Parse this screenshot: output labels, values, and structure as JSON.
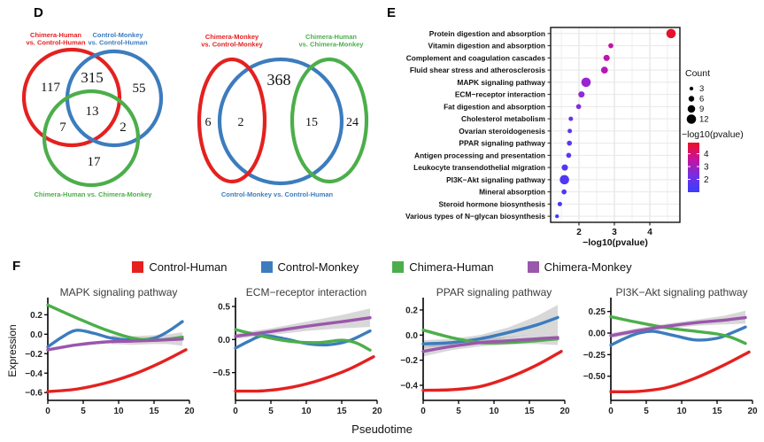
{
  "panel_labels": {
    "d": "D",
    "e": "E",
    "f": "F"
  },
  "colors": {
    "red": "#e4211f",
    "blue": "#3c7cbe",
    "green": "#4cae4b",
    "purple": "#9a57ab",
    "gridline": "#e3e3e3",
    "band_gray": "#999999",
    "dot_gradient_top": "#ee1023",
    "dot_gradient_mid": "#c215a2",
    "dot_gradient_bottom": "#3a3dfa"
  },
  "panel_f": {
    "xlabel": "Pseudotime",
    "legend": [
      {
        "label": "Control-Human",
        "color": "red"
      },
      {
        "label": "Control-Monkey",
        "color": "blue"
      },
      {
        "label": "Chimera-Human",
        "color": "green"
      },
      {
        "label": "Chimera-Monkey",
        "color": "purple"
      }
    ]
  },
  "chart_data": [
    {
      "type": "venn",
      "name": "venn-human-comparisons",
      "sets": [
        {
          "label_lines": [
            "Chimera-Human",
            "vs. Control-Human"
          ],
          "color": "red"
        },
        {
          "label_lines": [
            "Control-Monkey",
            "vs. Control-Human"
          ],
          "color": "blue"
        },
        {
          "label_lines": [
            "Chimera-Human vs. Chimera-Monkey"
          ],
          "color": "green"
        }
      ],
      "values": {
        "A": 117,
        "AB": 315,
        "B": 55,
        "ABC": 13,
        "AC": 7,
        "BC": 2,
        "C": 17
      }
    },
    {
      "type": "venn",
      "name": "venn-monkey-comparisons",
      "sets": [
        {
          "label_lines": [
            "Chimera-Monkey",
            "vs. Control-Monkey"
          ],
          "color": "red"
        },
        {
          "label_lines": [
            "Control-Monkey vs. Control-Human"
          ],
          "color": "blue"
        },
        {
          "label_lines": [
            "Chimera-Human",
            "vs. Chimera-Monkey"
          ],
          "color": "green"
        }
      ],
      "values": {
        "A": 6,
        "AB": 2,
        "B": 368,
        "BC": 15,
        "C": 24
      }
    },
    {
      "type": "scatter",
      "name": "kegg-enrichment-dotplot",
      "xlabel": "−log10(pvalue)",
      "xlim": [
        1.2,
        4.85
      ],
      "xticks": [
        2,
        3,
        4
      ],
      "legend": {
        "count_title": "Count",
        "count_sizes": [
          3,
          6,
          9,
          12
        ],
        "color_title": "−log10(pvalue)",
        "color_ticks": [
          4,
          3,
          2
        ]
      },
      "points": [
        {
          "pathway": "Protein digestion and absorption",
          "neglog10p": 4.6,
          "count": 12,
          "color": "#e8112b"
        },
        {
          "pathway": "Vitamin digestion and absorption",
          "neglog10p": 2.9,
          "count": 5,
          "color": "#c214a4"
        },
        {
          "pathway": "Complement and coagulation cascades",
          "neglog10p": 2.78,
          "count": 7,
          "color": "#bd17ab"
        },
        {
          "pathway": "Fluid shear stress and atherosclerosis",
          "neglog10p": 2.72,
          "count": 8,
          "color": "#b519b5"
        },
        {
          "pathway": "MAPK signaling pathway",
          "neglog10p": 2.2,
          "count": 12,
          "color": "#9a24cf"
        },
        {
          "pathway": "ECM−receptor interaction",
          "neglog10p": 2.07,
          "count": 7,
          "color": "#9129d8"
        },
        {
          "pathway": "Fat digestion and absorption",
          "neglog10p": 1.99,
          "count": 5,
          "color": "#812ee2"
        },
        {
          "pathway": "Cholesterol metabolism",
          "neglog10p": 1.77,
          "count": 4,
          "color": "#6333ee"
        },
        {
          "pathway": "Ovarian steroidogenesis",
          "neglog10p": 1.74,
          "count": 4,
          "color": "#5f34f0"
        },
        {
          "pathway": "PPAR signaling pathway",
          "neglog10p": 1.73,
          "count": 5,
          "color": "#5e35f0"
        },
        {
          "pathway": "Antigen processing and presentation",
          "neglog10p": 1.71,
          "count": 5,
          "color": "#5c35f1"
        },
        {
          "pathway": "Leukocyte transendothelial migration",
          "neglog10p": 1.6,
          "count": 7,
          "color": "#5037f4"
        },
        {
          "pathway": "PI3K−Akt signaling pathway",
          "neglog10p": 1.59,
          "count": 12,
          "color": "#4f37f4"
        },
        {
          "pathway": "Mineral absorption",
          "neglog10p": 1.58,
          "count": 5,
          "color": "#4e38f4"
        },
        {
          "pathway": "Steroid hormone biosynthesis",
          "neglog10p": 1.46,
          "count": 4,
          "color": "#4339f7"
        },
        {
          "pathway": "Various types of N−glycan biosynthesis",
          "neglog10p": 1.38,
          "count": 3,
          "color": "#3f3af8"
        }
      ]
    },
    {
      "type": "line",
      "title": "MAPK signaling pathway",
      "ylabel": "Expression",
      "xlim": [
        0,
        20
      ],
      "xticks": [
        0,
        5,
        10,
        15,
        20
      ],
      "ylim": [
        -0.68,
        0.34
      ],
      "yticks": [
        0.2,
        0,
        -0.2,
        -0.4,
        -0.6
      ],
      "ytick_decimals": 1,
      "series": [
        {
          "name": "Control-Human",
          "color": "red",
          "x": [
            0,
            4,
            8,
            12,
            16,
            19.5
          ],
          "y": [
            -0.59,
            -0.565,
            -0.505,
            -0.415,
            -0.29,
            -0.16
          ]
        },
        {
          "name": "Control-Monkey",
          "color": "blue",
          "x": [
            0,
            2,
            4,
            6.5,
            9,
            12,
            15,
            17,
            19
          ],
          "y": [
            -0.13,
            -0.03,
            0.04,
            0.01,
            -0.04,
            -0.06,
            -0.04,
            0.03,
            0.13
          ]
        },
        {
          "name": "Chimera-Human",
          "color": "green",
          "x": [
            0,
            4,
            8,
            12,
            15,
            17,
            19
          ],
          "y": [
            0.3,
            0.17,
            0.05,
            -0.04,
            -0.06,
            -0.05,
            -0.03
          ],
          "band": {
            "x": [
              9,
              12,
              15,
              17,
              19
            ],
            "lo": [
              -0.1,
              -0.11,
              -0.1,
              -0.1,
              -0.12
            ],
            "hi": [
              -0.01,
              -0.02,
              -0.01,
              0.0,
              0.02
            ]
          }
        },
        {
          "name": "Chimera-Monkey",
          "color": "purple",
          "x": [
            0,
            4,
            8,
            12,
            16,
            19
          ],
          "y": [
            -0.16,
            -0.11,
            -0.08,
            -0.07,
            -0.06,
            -0.05
          ]
        }
      ]
    },
    {
      "type": "line",
      "title": "ECM−receptor interaction",
      "ylabel": "",
      "xlim": [
        0,
        20
      ],
      "xticks": [
        0,
        5,
        10,
        15,
        20
      ],
      "ylim": [
        -0.92,
        0.58
      ],
      "yticks": [
        0.5,
        0,
        -0.5
      ],
      "ytick_decimals": 1,
      "series": [
        {
          "name": "Control-Human",
          "color": "red",
          "x": [
            0,
            4,
            8,
            12,
            16,
            19.5
          ],
          "y": [
            -0.78,
            -0.775,
            -0.72,
            -0.61,
            -0.45,
            -0.26
          ]
        },
        {
          "name": "Control-Monkey",
          "color": "blue",
          "x": [
            0,
            2,
            4,
            7,
            10,
            13,
            16,
            19
          ],
          "y": [
            -0.13,
            -0.02,
            0.06,
            0.01,
            -0.06,
            -0.08,
            -0.02,
            0.13
          ]
        },
        {
          "name": "Chimera-Human",
          "color": "green",
          "x": [
            0,
            3,
            6,
            9,
            12,
            15,
            17,
            19
          ],
          "y": [
            0.15,
            0.07,
            0.0,
            -0.04,
            -0.045,
            -0.01,
            -0.05,
            -0.16
          ]
        },
        {
          "name": "Chimera-Monkey",
          "color": "purple",
          "x": [
            0,
            5,
            10,
            15,
            19
          ],
          "y": [
            0.05,
            0.12,
            0.2,
            0.27,
            0.33
          ],
          "band": {
            "x": [
              0,
              5,
              10,
              15,
              19
            ],
            "lo": [
              0.01,
              0.07,
              0.13,
              0.17,
              0.19
            ],
            "hi": [
              0.09,
              0.17,
              0.27,
              0.37,
              0.47
            ]
          }
        }
      ]
    },
    {
      "type": "line",
      "title": "PPAR signaling pathway",
      "ylabel": "",
      "xlim": [
        0,
        20
      ],
      "xticks": [
        0,
        5,
        10,
        15,
        20
      ],
      "ylim": [
        -0.52,
        0.27
      ],
      "yticks": [
        0.2,
        0,
        -0.2,
        -0.4
      ],
      "ytick_decimals": 1,
      "series": [
        {
          "name": "Control-Human",
          "color": "red",
          "x": [
            0,
            4,
            8,
            12,
            16,
            19.5
          ],
          "y": [
            -0.44,
            -0.435,
            -0.41,
            -0.34,
            -0.24,
            -0.13
          ]
        },
        {
          "name": "Control-Monkey",
          "color": "blue",
          "x": [
            0,
            4,
            8,
            12,
            16,
            19
          ],
          "y": [
            -0.07,
            -0.06,
            -0.03,
            0.02,
            0.08,
            0.14
          ],
          "band": {
            "x": [
              0,
              4,
              8,
              12,
              16,
              19
            ],
            "lo": [
              -0.1,
              -0.09,
              -0.06,
              -0.02,
              0.01,
              0.04
            ],
            "hi": [
              -0.04,
              -0.03,
              0.0,
              0.06,
              0.15,
              0.24
            ]
          }
        },
        {
          "name": "Chimera-Human",
          "color": "green",
          "x": [
            0,
            4,
            8,
            12,
            16,
            19
          ],
          "y": [
            0.04,
            -0.02,
            -0.06,
            -0.06,
            -0.045,
            -0.03
          ]
        },
        {
          "name": "Chimera-Monkey",
          "color": "purple",
          "x": [
            0,
            4,
            8,
            12,
            16,
            19
          ],
          "y": [
            -0.13,
            -0.09,
            -0.06,
            -0.045,
            -0.03,
            -0.02
          ],
          "band": {
            "x": [
              0,
              4,
              8,
              12,
              16,
              19
            ],
            "lo": [
              -0.17,
              -0.12,
              -0.09,
              -0.075,
              -0.07,
              -0.08
            ],
            "hi": [
              -0.09,
              -0.06,
              -0.03,
              -0.015,
              0.01,
              0.04
            ]
          }
        }
      ]
    },
    {
      "type": "line",
      "title": "PI3K−Akt signaling pathway",
      "ylabel": "",
      "xlim": [
        0,
        20
      ],
      "xticks": [
        0,
        5,
        10,
        15,
        20
      ],
      "ylim": [
        -0.78,
        0.37
      ],
      "yticks": [
        0.25,
        0,
        -0.25,
        -0.5
      ],
      "ytick_decimals": 2,
      "series": [
        {
          "name": "Control-Human",
          "color": "red",
          "x": [
            0,
            4,
            8,
            12,
            16,
            19.5
          ],
          "y": [
            -0.68,
            -0.675,
            -0.63,
            -0.52,
            -0.37,
            -0.22
          ]
        },
        {
          "name": "Control-Monkey",
          "color": "blue",
          "x": [
            0,
            2,
            4,
            6,
            9,
            12,
            15,
            17,
            19
          ],
          "y": [
            -0.14,
            -0.06,
            0.0,
            0.02,
            -0.03,
            -0.08,
            -0.06,
            0.0,
            0.07
          ]
        },
        {
          "name": "Chimera-Human",
          "color": "green",
          "x": [
            0,
            4,
            8,
            12,
            15,
            17,
            19
          ],
          "y": [
            0.19,
            0.12,
            0.06,
            0.02,
            -0.01,
            -0.05,
            -0.12
          ]
        },
        {
          "name": "Chimera-Monkey",
          "color": "purple",
          "x": [
            0,
            4,
            8,
            12,
            16,
            19
          ],
          "y": [
            -0.03,
            0.03,
            0.08,
            0.12,
            0.15,
            0.18
          ],
          "band": {
            "x": [
              0,
              4,
              8,
              12,
              16,
              19
            ],
            "lo": [
              -0.06,
              0.0,
              0.05,
              0.085,
              0.1,
              0.11
            ],
            "hi": [
              0.0,
              0.06,
              0.11,
              0.155,
              0.2,
              0.26
            ]
          }
        }
      ]
    }
  ]
}
